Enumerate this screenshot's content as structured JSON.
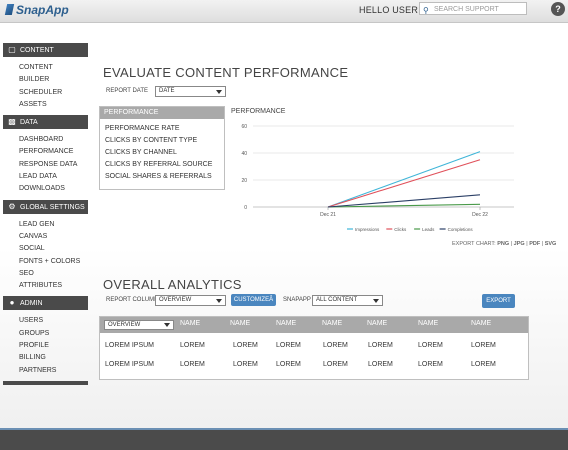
{
  "header": {
    "logo": "SnapApp",
    "greeting": "HELLO USER",
    "search_placeholder": "SEARCH SUPPORT",
    "help": "?"
  },
  "sidebar": {
    "sections": [
      {
        "label": "CONTENT",
        "icon": "monitor-icon",
        "items": [
          "CONTENT",
          "BUILDER",
          "SCHEDULER",
          "ASSETS"
        ]
      },
      {
        "label": "DATA",
        "icon": "bar-chart-icon",
        "items": [
          "DASHBOARD",
          "PERFORMANCE",
          "RESPONSE DATA",
          "LEAD DATA",
          "DOWNLOADS"
        ]
      },
      {
        "label": "GLOBAL SETTINGS",
        "icon": "gear-icon",
        "items": [
          "LEAD GEN",
          "CANVAS",
          "SOCIAL",
          "FONTS + COLORS",
          "SEO",
          "ATTRIBUTES"
        ]
      },
      {
        "label": "ADMIN",
        "icon": "user-icon",
        "items": [
          "USERS",
          "GROUPS",
          "PROFILE",
          "BILLING",
          "PARTNERS"
        ]
      }
    ]
  },
  "evaluate": {
    "title": "EVALUATE CONTENT PERFORMANCE",
    "report_date_label": "REPORT DATE",
    "report_date_value": "DATE",
    "menu_header": "PERFORMANCE",
    "menu_items": [
      "PERFORMANCE RATE",
      "CLICKS BY CONTENT TYPE",
      "CLICKS BY CHANNEL",
      "CLICKS BY REFERRAL SOURCE",
      "SOCIAL SHARES & REFERRALS"
    ],
    "chart_title": "PERFORMANCE",
    "export_label": "EXPORT CHART:",
    "export_png": "PNG",
    "export_jpg": "JPG",
    "export_pdf": "PDF",
    "export_svg": "SVG",
    "sep": "|"
  },
  "chart_data": {
    "type": "line",
    "title": "PERFORMANCE",
    "x": [
      "Dec 21",
      "Dec 22"
    ],
    "ylim": [
      0,
      60
    ],
    "yticks": [
      0,
      20,
      40,
      60
    ],
    "grid": true,
    "legend_position": "bottom",
    "series": [
      {
        "name": "Impressions",
        "color": "#3fb5d8",
        "values": [
          0,
          41
        ]
      },
      {
        "name": "Clicks",
        "color": "#e0505a",
        "values": [
          0,
          35
        ]
      },
      {
        "name": "Leads",
        "color": "#4a9a4a",
        "values": [
          0,
          2
        ]
      },
      {
        "name": "Completions",
        "color": "#2b3f66",
        "values": [
          0,
          9
        ]
      }
    ]
  },
  "overall": {
    "title": "OVERALL ANALYTICS",
    "report_columns_label": "REPORT COLUMNS",
    "report_columns_value": "OVERVIEW",
    "customize_label": "CUSTOMIZEÂ",
    "snapapp_label": "SNAPAPP",
    "snapapp_value": "ALL CONTENT",
    "export_label": "EXPORT",
    "table": {
      "select_value": "OVERVIEW",
      "headers": [
        "NAME",
        "NAME",
        "NAME",
        "NAME",
        "NAME",
        "NAME",
        "NAME"
      ],
      "rows": [
        [
          "LOREM IPSUM",
          "LOREM",
          "LOREM",
          "LOREM",
          "LOREM",
          "LOREM",
          "LOREM",
          "LOREM"
        ],
        [
          "LOREM IPSUM",
          "LOREM",
          "LOREM",
          "LOREM",
          "LOREM",
          "LOREM",
          "LOREM",
          "LOREM"
        ]
      ]
    }
  }
}
